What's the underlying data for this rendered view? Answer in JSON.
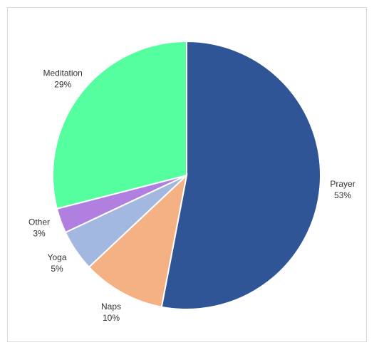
{
  "chart_data": {
    "type": "pie",
    "categories": [
      "Prayer",
      "Naps",
      "Yoga",
      "Other",
      "Meditation"
    ],
    "values": [
      53,
      10,
      5,
      3,
      29
    ],
    "value_labels": [
      "53%",
      "10%",
      "5%",
      "3%",
      "29%"
    ],
    "colors": [
      "#2f5597",
      "#f4b183",
      "#a3b8e0",
      "#b07fdf",
      "#55ffa0"
    ]
  }
}
